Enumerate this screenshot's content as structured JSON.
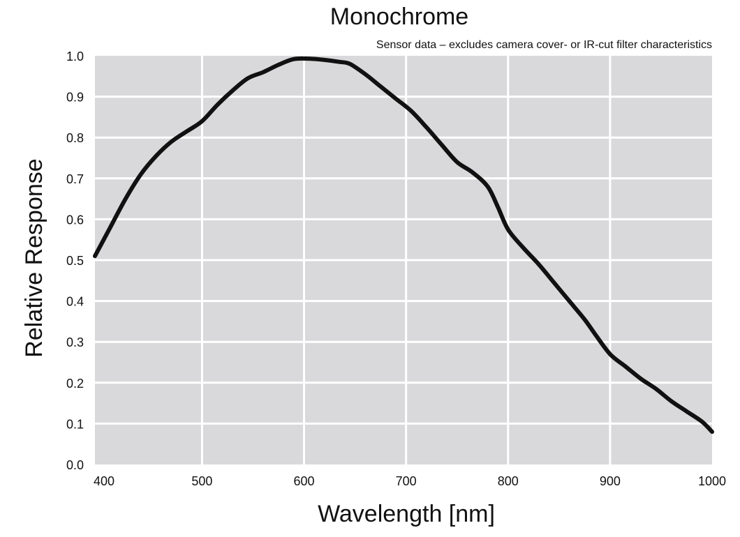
{
  "chart_data": {
    "type": "line",
    "title": "Monochrome",
    "subtitle": "Sensor data – excludes camera cover- or IR-cut filter characteristics",
    "xlabel": "Wavelength [nm]",
    "ylabel": "Relative Response",
    "xlim": [
      395,
      1000
    ],
    "ylim": [
      0,
      1
    ],
    "xticks": [
      400,
      500,
      600,
      700,
      800,
      900,
      1000
    ],
    "yticks": [
      0.0,
      0.1,
      0.2,
      0.3,
      0.4,
      0.5,
      0.6,
      0.7,
      0.8,
      0.9,
      1.0
    ],
    "x_tick_labels": [
      "400",
      "500",
      "600",
      "700",
      "800",
      "900",
      "1000"
    ],
    "y_tick_labels": [
      "0.0",
      "0.1",
      "0.2",
      "0.3",
      "0.4",
      "0.5",
      "0.6",
      "0.7",
      "0.8",
      "0.9",
      "1.0"
    ],
    "grid": true,
    "legend": "none",
    "colors": {
      "plot_background": "#d9d9db",
      "grid": "#ffffff",
      "line": "#111111"
    },
    "series": [
      {
        "x": [
          395,
          410,
          425,
          440,
          455,
          470,
          485,
          500,
          515,
          530,
          545,
          560,
          575,
          590,
          605,
          620,
          635,
          645,
          660,
          675,
          690,
          705,
          720,
          735,
          750,
          765,
          780,
          790,
          800,
          815,
          830,
          845,
          860,
          875,
          885,
          900,
          915,
          930,
          945,
          960,
          975,
          990,
          1000
        ],
        "y": [
          0.51,
          0.58,
          0.65,
          0.71,
          0.755,
          0.79,
          0.815,
          0.84,
          0.88,
          0.915,
          0.945,
          0.96,
          0.978,
          0.992,
          0.993,
          0.99,
          0.985,
          0.98,
          0.955,
          0.925,
          0.895,
          0.865,
          0.825,
          0.782,
          0.74,
          0.715,
          0.68,
          0.63,
          0.575,
          0.53,
          0.49,
          0.445,
          0.4,
          0.355,
          0.32,
          0.27,
          0.24,
          0.21,
          0.185,
          0.155,
          0.13,
          0.105,
          0.08
        ]
      }
    ]
  }
}
